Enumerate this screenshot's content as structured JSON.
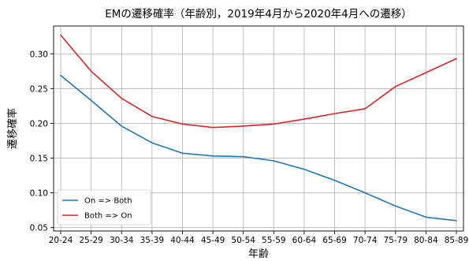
{
  "chart_data": {
    "type": "line",
    "title": "EMの遷移確率（年齢別，2019年4月から2020年4月への遷移）",
    "xlabel": "年齢",
    "ylabel": "遷移確率",
    "categories": [
      "20-24",
      "25-29",
      "30-34",
      "35-39",
      "40-44",
      "45-49",
      "50-54",
      "55-59",
      "60-64",
      "65-69",
      "70-74",
      "75-79",
      "80-84",
      "85-89"
    ],
    "ylim": [
      0.045,
      0.34
    ],
    "yticks": [
      0.05,
      0.1,
      0.15,
      0.2,
      0.25,
      0.3
    ],
    "ytick_labels": [
      "0.05",
      "0.10",
      "0.15",
      "0.20",
      "0.25",
      "0.30"
    ],
    "grid": true,
    "legend_position": "lower-left",
    "series": [
      {
        "name": "On => Both",
        "color": "#1f77b4",
        "values": [
          0.269,
          0.233,
          0.196,
          0.172,
          0.157,
          0.153,
          0.152,
          0.146,
          0.134,
          0.118,
          0.1,
          0.081,
          0.065,
          0.06
        ]
      },
      {
        "name": "Both => On",
        "color": "#d62728",
        "values": [
          0.327,
          0.275,
          0.236,
          0.21,
          0.199,
          0.194,
          0.196,
          0.199,
          0.206,
          0.214,
          0.221,
          0.253,
          0.273,
          0.293
        ]
      }
    ]
  }
}
